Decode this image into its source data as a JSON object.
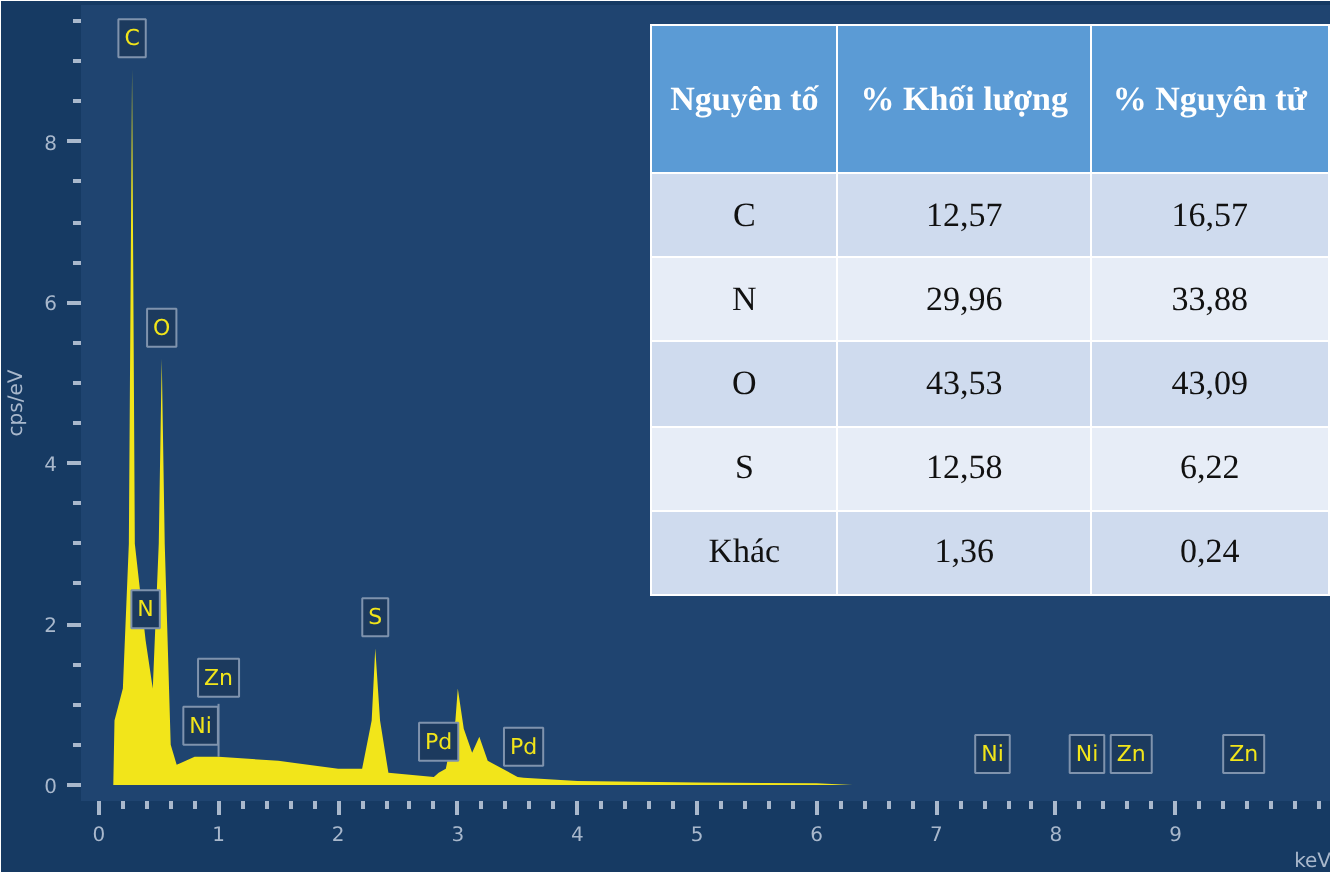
{
  "chart_data": [
    {
      "type": "area",
      "xlabel": "keV",
      "ylabel": "cps/eV",
      "x": [
        0.12,
        0.13,
        0.2,
        0.25,
        0.277,
        0.3,
        0.39,
        0.45,
        0.5,
        0.525,
        0.55,
        0.6,
        0.65,
        0.8,
        0.85,
        1.0,
        1.5,
        2.0,
        2.2,
        2.28,
        2.31,
        2.35,
        2.42,
        2.8,
        2.84,
        2.9,
        2.98,
        3.0,
        3.05,
        3.12,
        3.18,
        3.25,
        3.5,
        3.55,
        4.0,
        5.0,
        6.0,
        6.3,
        7.47,
        8.26,
        8.63,
        9.57
      ],
      "series": [
        {
          "color": "#f2e51a",
          "values": [
            0,
            0.8,
            1.2,
            3,
            8.9,
            3,
            1.8,
            1.2,
            3,
            5.3,
            3,
            0.5,
            0.25,
            0.35,
            0.35,
            0.35,
            0.3,
            0.2,
            0.2,
            0.8,
            1.7,
            0.8,
            0.15,
            0.1,
            0.15,
            0.2,
            0.8,
            1.2,
            0.7,
            0.4,
            0.6,
            0.3,
            0.1,
            0.09,
            0.05,
            0.03,
            0.02,
            0,
            0,
            0,
            0,
            0
          ]
        }
      ],
      "xlim": [
        -0.15,
        10.3
      ],
      "ylim": [
        -0.2,
        9.7
      ],
      "xticks": [
        0,
        1,
        2,
        3,
        4,
        5,
        6,
        7,
        8,
        9
      ],
      "yticks": [
        0,
        2,
        4,
        6,
        8
      ],
      "grid": false,
      "annotations": [
        {
          "text": "C",
          "x": 0.277,
          "y": 8.9
        },
        {
          "text": "O",
          "x": 0.525,
          "y": 5.3
        },
        {
          "text": "N",
          "x": 0.39,
          "y": 1.8
        },
        {
          "text": "Ni",
          "x": 0.85,
          "y": 0.35
        },
        {
          "text": "Zn",
          "x": 1.0,
          "y": 0.35
        },
        {
          "text": "S",
          "x": 2.31,
          "y": 1.7
        },
        {
          "text": "Pd",
          "x": 2.84,
          "y": 0.15
        },
        {
          "text": "Pd",
          "x": 3.55,
          "y": 0.09
        },
        {
          "text": "Ni",
          "x": 7.47,
          "y": 0
        },
        {
          "text": "Ni",
          "x": 8.26,
          "y": 0
        },
        {
          "text": "Zn",
          "x": 8.63,
          "y": 0
        },
        {
          "text": "Zn",
          "x": 9.57,
          "y": 0
        }
      ]
    },
    {
      "type": "other",
      "xlabel": "Nguyên tố",
      "categories": [
        "C",
        "N",
        "O",
        "S",
        "Khác"
      ],
      "colors": [
        "#cfdbee",
        "#e7edf7",
        "#cfdbee",
        "#e7edf7",
        "#cfdbee"
      ],
      "series": [
        {
          "name": "% Khối lượng",
          "colors": [
            "#cfdbee",
            "#e7edf7",
            "#cfdbee",
            "#e7edf7",
            "#cfdbee"
          ],
          "values": [
            12.57,
            29.96,
            43.53,
            12.58,
            1.36
          ],
          "value_labels": [
            "12,57",
            "29,96",
            "43,53",
            "12,58",
            "1,36"
          ]
        },
        {
          "name": "% Nguyên tử",
          "colors": [
            "#cfdbee",
            "#e7edf7",
            "#cfdbee",
            "#e7edf7",
            "#cfdbee"
          ],
          "values": [
            16.57,
            33.88,
            43.09,
            6.22,
            0.24
          ],
          "value_labels": [
            "16,57",
            "33,88",
            "43,09",
            "6,22",
            "0,24"
          ]
        }
      ]
    }
  ]
}
